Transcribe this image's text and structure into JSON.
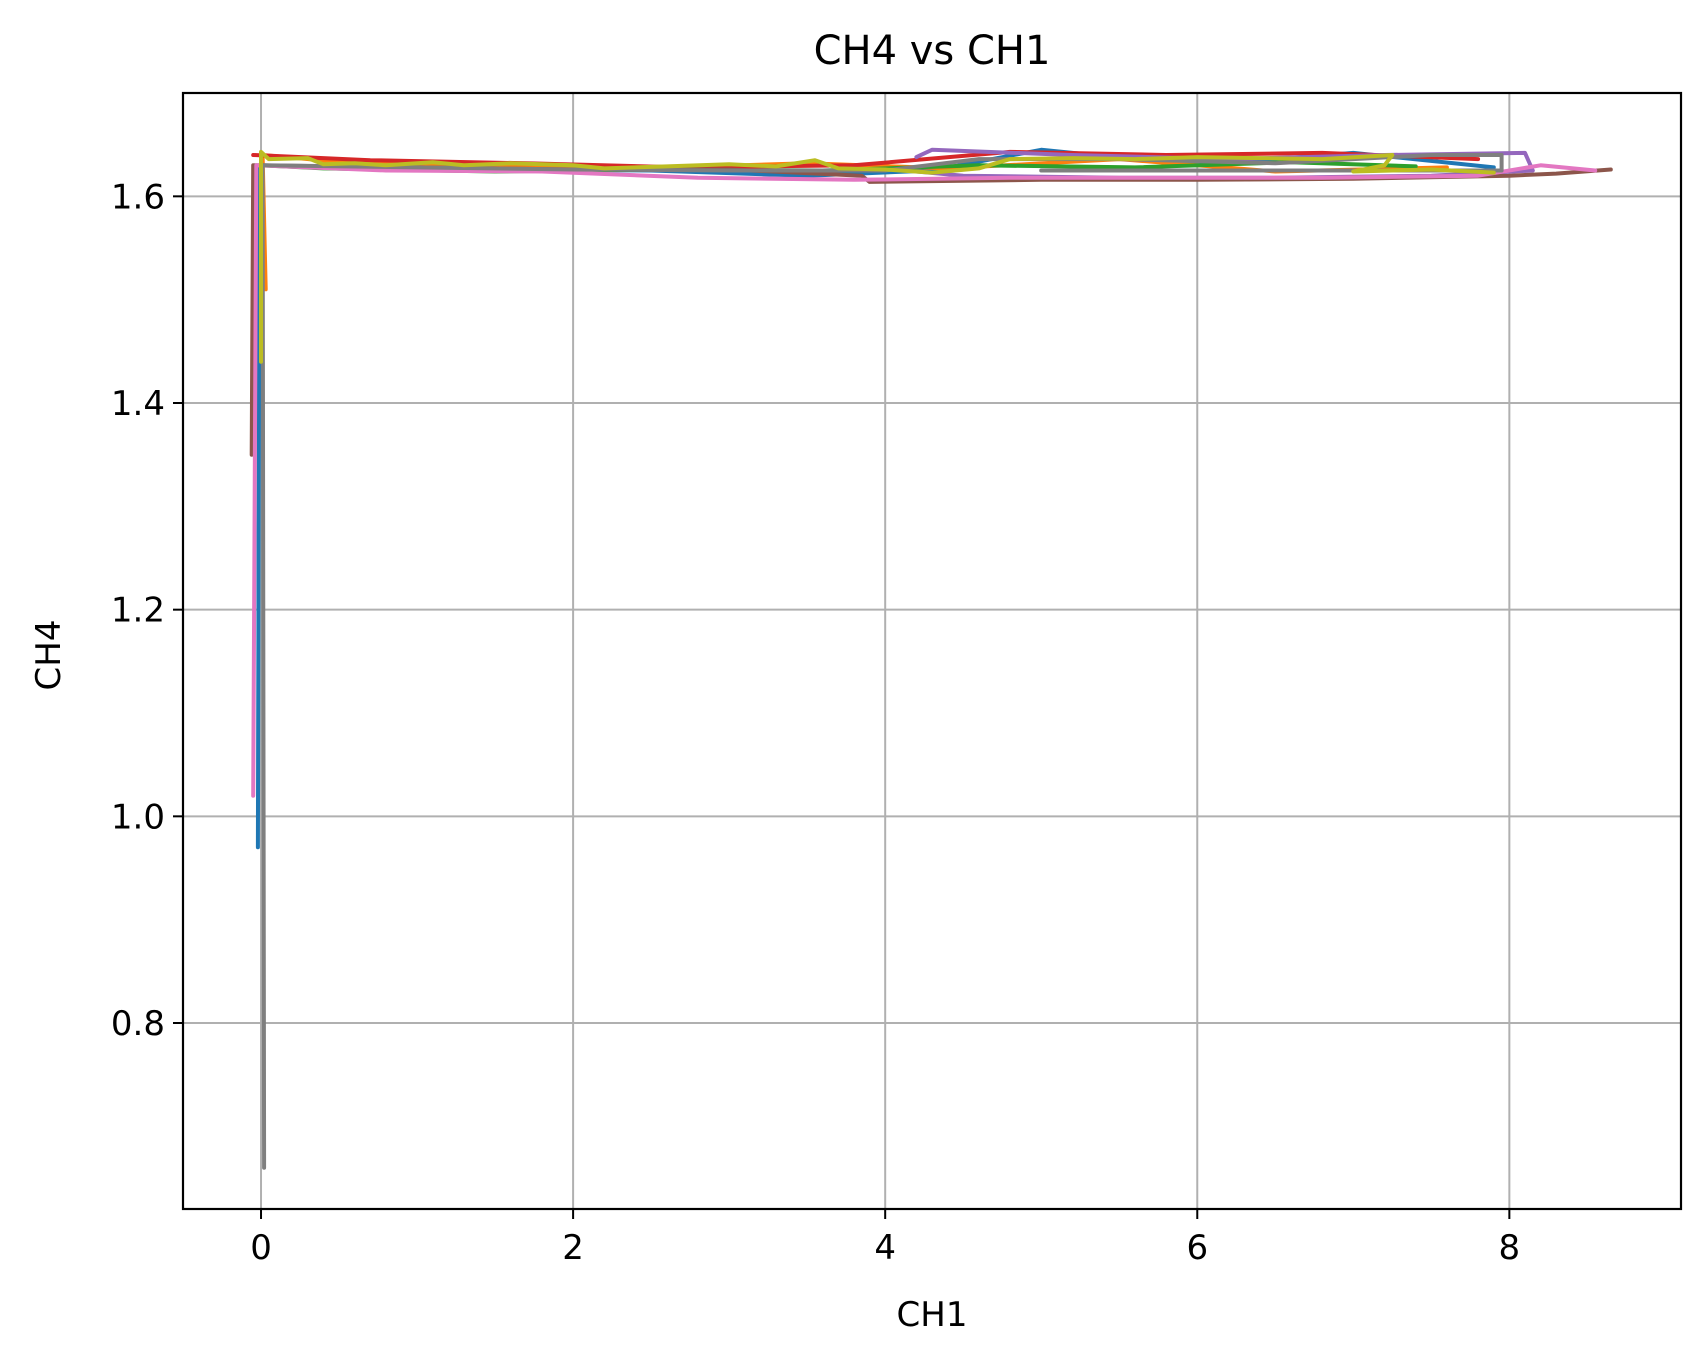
{
  "chart_data": {
    "type": "line",
    "title": "CH4 vs CH1",
    "xlabel": "CH1",
    "ylabel": "CH4",
    "xlim": [
      -0.5,
      9.1
    ],
    "ylim": [
      0.62,
      1.7
    ],
    "xticks": [
      0,
      2,
      4,
      6,
      8
    ],
    "yticks": [
      0.8,
      1.0,
      1.2,
      1.4,
      1.6
    ],
    "xtick_labels": [
      "0",
      "2",
      "4",
      "6",
      "8"
    ],
    "ytick_labels": [
      "0.8",
      "1.0",
      "1.2",
      "1.4",
      "1.6"
    ],
    "grid": true,
    "legend": false,
    "series": [
      {
        "color": "#1f77b4",
        "points": [
          [
            -0.02,
            0.97
          ],
          [
            -0.01,
            1.63
          ],
          [
            0.5,
            1.628
          ],
          [
            1.5,
            1.626
          ],
          [
            2.5,
            1.625
          ],
          [
            3.5,
            1.62
          ],
          [
            4.3,
            1.625
          ],
          [
            5.0,
            1.645
          ],
          [
            6.0,
            1.63
          ],
          [
            7.0,
            1.642
          ],
          [
            7.9,
            1.628
          ]
        ]
      },
      {
        "color": "#ff7f0e",
        "points": [
          [
            0.03,
            1.51
          ],
          [
            0.01,
            1.64
          ],
          [
            0.6,
            1.632
          ],
          [
            1.6,
            1.63
          ],
          [
            2.6,
            1.628
          ],
          [
            3.5,
            1.632
          ],
          [
            4.4,
            1.627
          ],
          [
            5.5,
            1.636
          ],
          [
            6.5,
            1.624
          ],
          [
            7.6,
            1.628
          ]
        ]
      },
      {
        "color": "#2ca02c",
        "points": [
          [
            0.0,
            1.63
          ],
          [
            0.4,
            1.627
          ],
          [
            1.5,
            1.624
          ],
          [
            2.5,
            1.626
          ],
          [
            3.6,
            1.625
          ],
          [
            4.6,
            1.63
          ],
          [
            5.6,
            1.628
          ],
          [
            6.6,
            1.633
          ],
          [
            7.4,
            1.629
          ]
        ]
      },
      {
        "color": "#d62728",
        "points": [
          [
            -0.05,
            1.64
          ],
          [
            0.7,
            1.635
          ],
          [
            1.7,
            1.632
          ],
          [
            2.7,
            1.628
          ],
          [
            3.8,
            1.63
          ],
          [
            4.8,
            1.643
          ],
          [
            5.8,
            1.64
          ],
          [
            6.8,
            1.642
          ],
          [
            7.8,
            1.636
          ]
        ]
      },
      {
        "color": "#9467bd",
        "points": [
          [
            4.2,
            1.638
          ],
          [
            4.3,
            1.645
          ],
          [
            5.2,
            1.64
          ],
          [
            6.2,
            1.636
          ],
          [
            7.2,
            1.64
          ],
          [
            8.1,
            1.642
          ],
          [
            8.15,
            1.625
          ],
          [
            7.5,
            1.62
          ],
          [
            6.5,
            1.618
          ],
          [
            5.5,
            1.618
          ],
          [
            4.5,
            1.62
          ],
          [
            4.2,
            1.624
          ]
        ]
      },
      {
        "color": "#8c564b",
        "points": [
          [
            -0.06,
            1.35
          ],
          [
            -0.05,
            1.63
          ],
          [
            1.0,
            1.628
          ],
          [
            2.0,
            1.626
          ],
          [
            3.0,
            1.626
          ],
          [
            3.85,
            1.62
          ],
          [
            3.9,
            1.614
          ],
          [
            5.0,
            1.616
          ],
          [
            6.0,
            1.616
          ],
          [
            7.0,
            1.617
          ],
          [
            8.0,
            1.62
          ],
          [
            8.3,
            1.622
          ],
          [
            8.65,
            1.626
          ]
        ]
      },
      {
        "color": "#e377c2",
        "points": [
          [
            -0.05,
            1.02
          ],
          [
            -0.03,
            1.63
          ],
          [
            0.8,
            1.625
          ],
          [
            1.8,
            1.624
          ],
          [
            2.8,
            1.618
          ],
          [
            3.8,
            1.616
          ],
          [
            4.8,
            1.618
          ],
          [
            5.8,
            1.618
          ],
          [
            6.8,
            1.618
          ],
          [
            7.8,
            1.62
          ],
          [
            8.2,
            1.63
          ],
          [
            8.55,
            1.625
          ]
        ]
      },
      {
        "color": "#7f7f7f",
        "points": [
          [
            0.02,
            0.66
          ],
          [
            0.01,
            1.63
          ],
          [
            1.0,
            1.628
          ],
          [
            2.0,
            1.626
          ],
          [
            3.0,
            1.625
          ],
          [
            4.0,
            1.625
          ],
          [
            4.6,
            1.636
          ],
          [
            5.5,
            1.636
          ],
          [
            6.5,
            1.632
          ],
          [
            7.5,
            1.64
          ],
          [
            7.95,
            1.64
          ],
          [
            7.95,
            1.625
          ],
          [
            7.0,
            1.625
          ],
          [
            6.0,
            1.625
          ],
          [
            5.0,
            1.625
          ]
        ]
      },
      {
        "color": "#bcbd22",
        "points": [
          [
            0.0,
            1.44
          ],
          [
            0.0,
            1.643
          ],
          [
            0.05,
            1.636
          ],
          [
            0.3,
            1.637
          ],
          [
            0.4,
            1.631
          ],
          [
            0.6,
            1.632
          ],
          [
            0.8,
            1.63
          ],
          [
            1.1,
            1.633
          ],
          [
            1.3,
            1.63
          ],
          [
            1.6,
            1.632
          ],
          [
            2.0,
            1.63
          ],
          [
            2.2,
            1.627
          ],
          [
            2.6,
            1.629
          ],
          [
            3.0,
            1.631
          ],
          [
            3.3,
            1.629
          ],
          [
            3.55,
            1.635
          ],
          [
            3.7,
            1.627
          ],
          [
            4.0,
            1.626
          ],
          [
            4.3,
            1.623
          ],
          [
            4.6,
            1.627
          ],
          [
            4.8,
            1.636
          ],
          [
            5.2,
            1.637
          ],
          [
            5.6,
            1.636
          ],
          [
            6.0,
            1.638
          ],
          [
            6.4,
            1.637
          ],
          [
            6.8,
            1.636
          ],
          [
            7.25,
            1.64
          ],
          [
            7.2,
            1.63
          ],
          [
            7.0,
            1.624
          ],
          [
            7.5,
            1.626
          ],
          [
            7.9,
            1.623
          ]
        ]
      }
    ]
  }
}
